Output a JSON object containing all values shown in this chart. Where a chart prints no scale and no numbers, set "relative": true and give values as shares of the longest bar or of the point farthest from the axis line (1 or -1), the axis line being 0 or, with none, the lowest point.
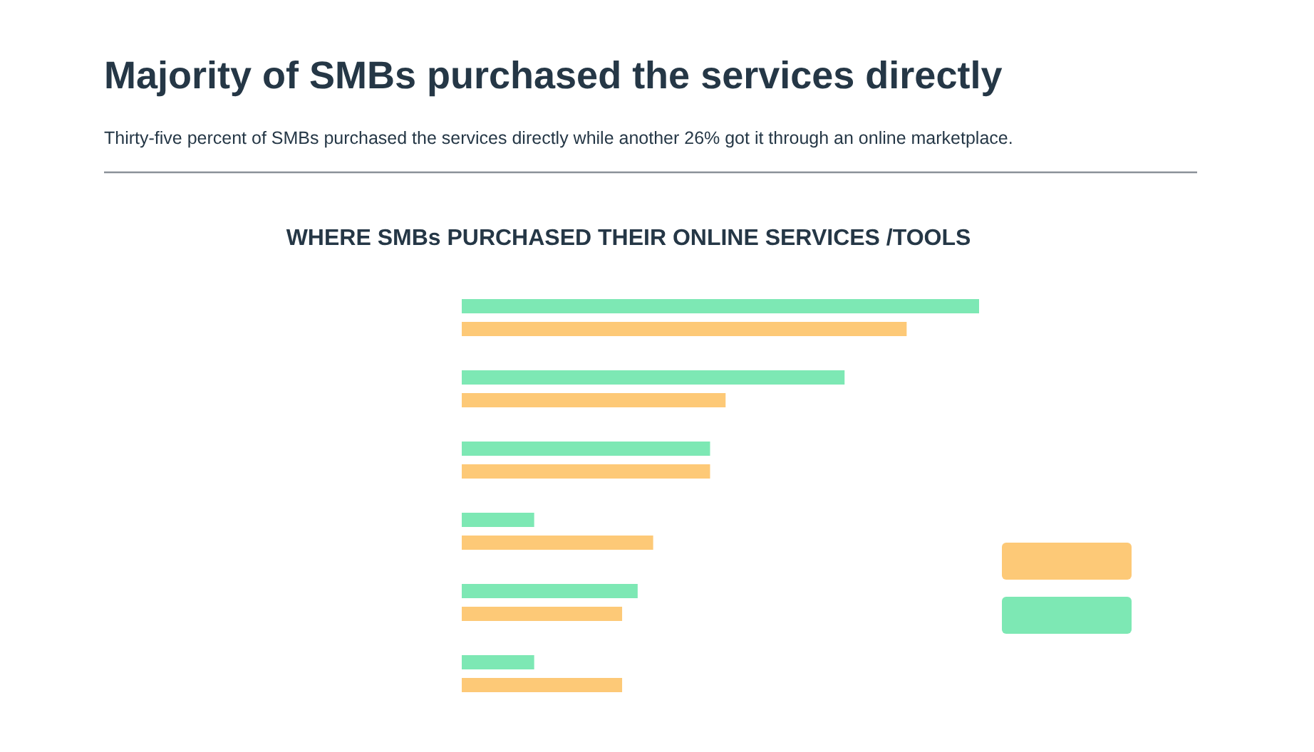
{
  "chart_data": {
    "type": "bar",
    "orientation": "horizontal",
    "relative": true,
    "title": "WHERE SMBs PURCHASED THEIR ONLINE SERVICES /TOOLS",
    "annotations": [
      "Majority of SMBs purchased the services directly",
      "Thirty-five percent of SMBs purchased the services directly while another 26% got it through an online marketplace."
    ],
    "categories": [
      null,
      null,
      null,
      null,
      null,
      null
    ],
    "series": [
      {
        "color": "#7de8b4",
        "values": [
          1,
          0.74,
          0.48,
          0.14,
          0.34,
          0.14
        ]
      },
      {
        "color": "#fdc977",
        "values": [
          0.86,
          0.51,
          0.48,
          0.37,
          0.31,
          0.31
        ]
      }
    ]
  }
}
